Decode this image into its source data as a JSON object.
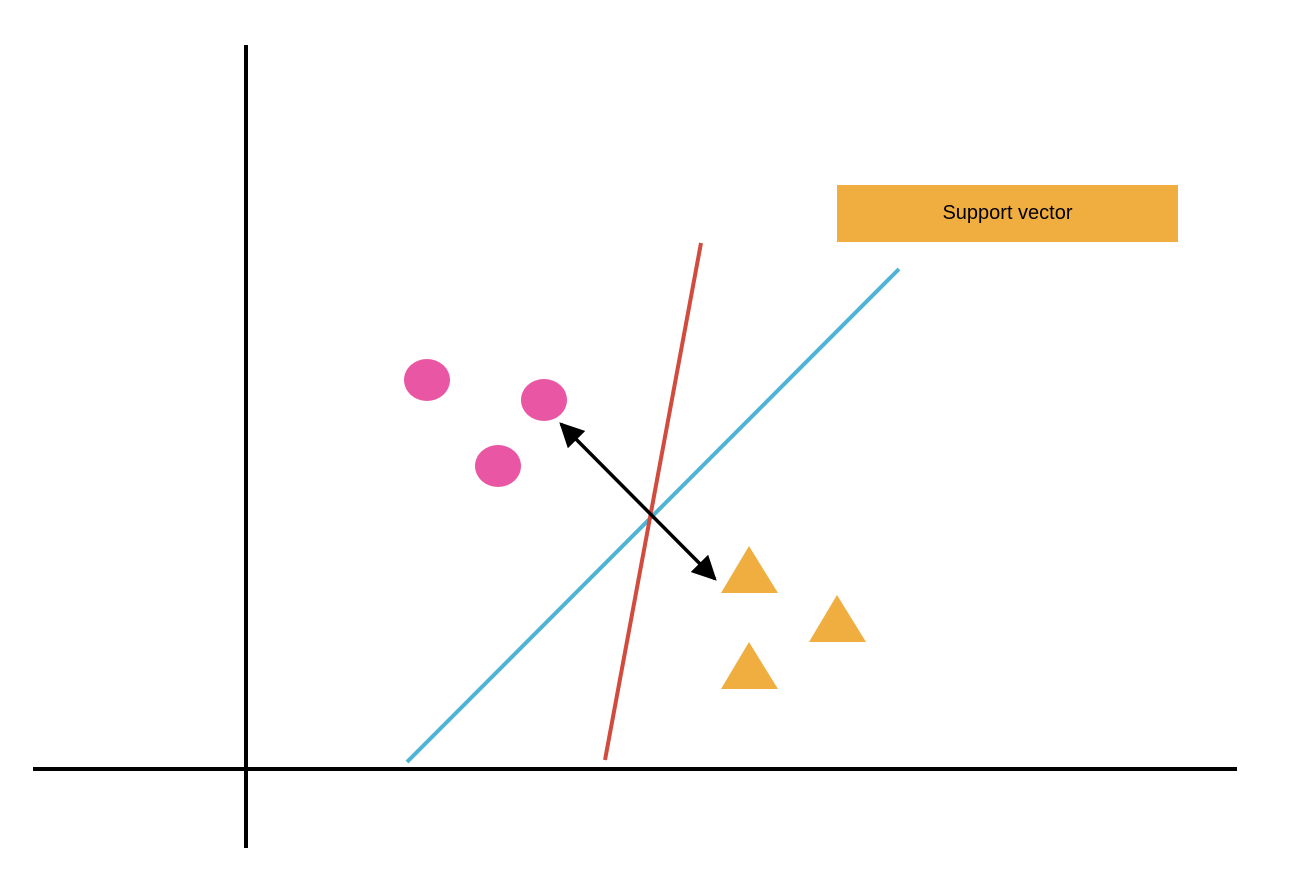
{
  "diagram": {
    "label": "Support vector",
    "colors": {
      "axes": "#000000",
      "class_a": "#e957a4",
      "class_b": "#f0ae40",
      "hyperplane_red": "#d24b3f",
      "hyperplane_blue": "#4fb3d6",
      "margin_arrow": "#000000",
      "label_box": "#f0ae40"
    },
    "classes": [
      {
        "name": "circles",
        "shape": "circle",
        "count": 3
      },
      {
        "name": "triangles",
        "shape": "triangle",
        "count": 3
      }
    ]
  }
}
